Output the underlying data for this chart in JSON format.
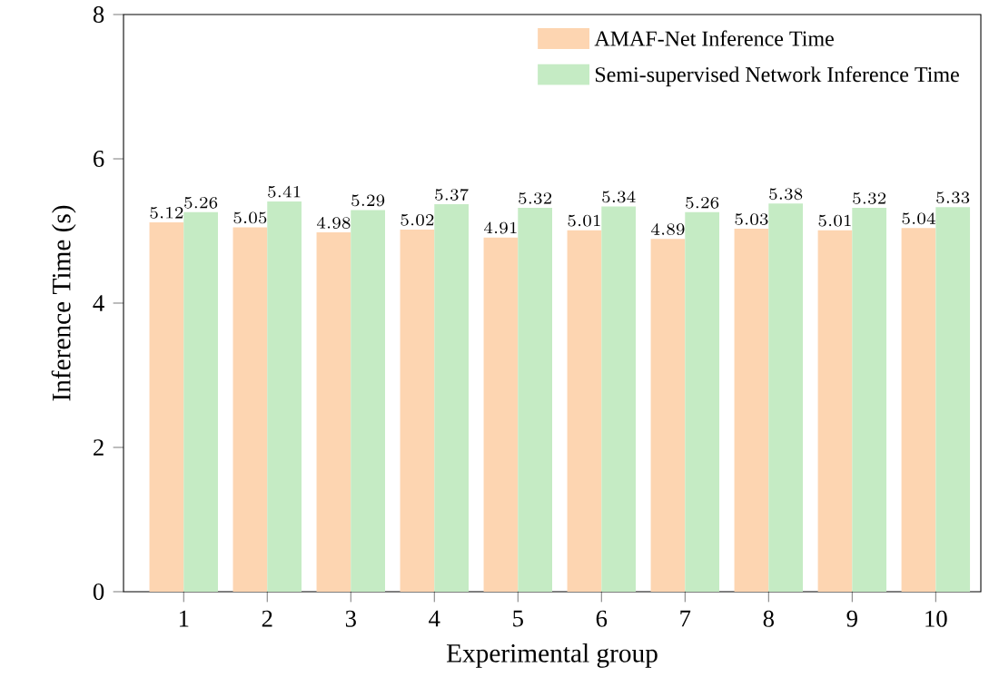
{
  "chart_data": {
    "type": "bar",
    "xlabel": "Experimental group",
    "ylabel": "Inference Time (s)",
    "categories": [
      "1",
      "2",
      "3",
      "4",
      "5",
      "6",
      "7",
      "8",
      "9",
      "10"
    ],
    "series": [
      {
        "name": "AMAF-Net Inference Time",
        "color": "#fdd5b1",
        "values": [
          5.12,
          5.05,
          4.98,
          5.02,
          4.91,
          5.01,
          4.89,
          5.03,
          5.01,
          5.04
        ]
      },
      {
        "name": "Semi-supervised Network Inference Time",
        "color": "#c5ebc4",
        "values": [
          5.26,
          5.41,
          5.29,
          5.37,
          5.32,
          5.34,
          5.26,
          5.38,
          5.32,
          5.33
        ]
      }
    ],
    "ylim": [
      0,
      8
    ],
    "yticks": [
      0,
      2,
      4,
      6,
      8
    ],
    "grid": false,
    "legend": "top right",
    "data_labels": true
  }
}
